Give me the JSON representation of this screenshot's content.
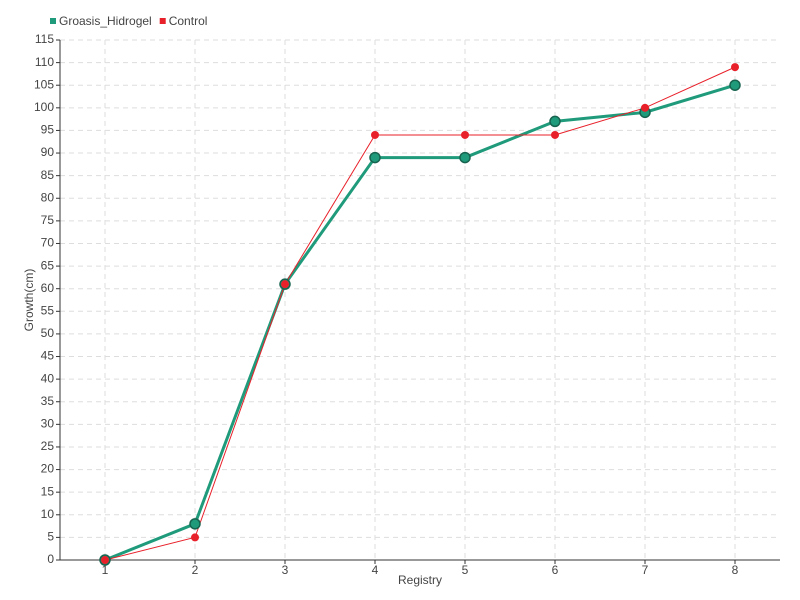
{
  "chart_data": {
    "type": "line",
    "x": [
      1,
      2,
      3,
      4,
      5,
      6,
      7,
      8
    ],
    "xlabel": "Registry",
    "ylabel": "Growth(cm)",
    "series": [
      {
        "name": "Groasis_Hidrogel",
        "color": "#1f9b7b",
        "values": [
          0,
          8,
          61,
          89,
          89,
          97,
          99,
          105
        ]
      },
      {
        "name": "Control",
        "color": "#e8202a",
        "values": [
          0,
          5,
          61,
          94,
          94,
          94,
          100,
          109
        ]
      }
    ],
    "xlim": [
      0.5,
      8.5
    ],
    "xticks": [
      1,
      2,
      3,
      4,
      5,
      6,
      7,
      8
    ],
    "ylim": [
      0,
      115
    ],
    "yticks": [
      0,
      5,
      10,
      15,
      20,
      25,
      30,
      35,
      40,
      45,
      50,
      55,
      60,
      65,
      70,
      75,
      80,
      85,
      90,
      95,
      100,
      105,
      110,
      115
    ],
    "grid": true
  }
}
